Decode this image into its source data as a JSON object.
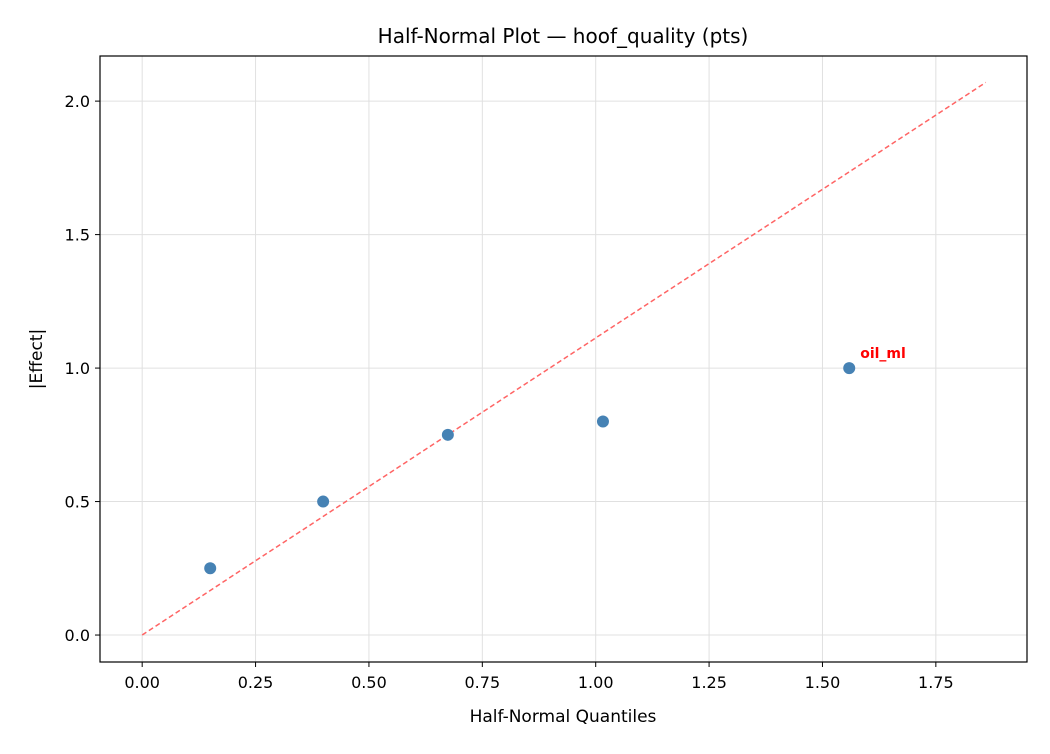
{
  "chart_data": {
    "type": "scatter",
    "title": "Half-Normal Plot — hoof_quality (pts)",
    "xlabel": "Half-Normal Quantiles",
    "ylabel": "|Effect|",
    "xlim": [
      -0.093,
      1.951
    ],
    "ylim": [
      -0.101,
      2.169
    ],
    "xticks": [
      0.0,
      0.25,
      0.5,
      0.75,
      1.0,
      1.25,
      1.5,
      1.75
    ],
    "xtick_labels": [
      "0.00",
      "0.25",
      "0.50",
      "0.75",
      "1.00",
      "1.25",
      "1.50",
      "1.75"
    ],
    "yticks": [
      0.0,
      0.5,
      1.0,
      1.5,
      2.0
    ],
    "ytick_labels": [
      "0.0",
      "0.5",
      "1.0",
      "1.5",
      "2.0"
    ],
    "grid": true,
    "points": {
      "x": [
        0.15,
        0.399,
        0.674,
        1.016,
        1.559
      ],
      "y": [
        0.25,
        0.5,
        0.75,
        0.8,
        1.0
      ],
      "color": "#4682b4"
    },
    "reference_line": {
      "x": [
        0.0,
        1.86
      ],
      "y": [
        0.0,
        2.07
      ],
      "color": "#ff6464",
      "style": "dashed"
    },
    "annotations": [
      {
        "text": "oil_ml",
        "x": 1.559,
        "y": 1.0,
        "color": "#ff0000"
      }
    ]
  }
}
